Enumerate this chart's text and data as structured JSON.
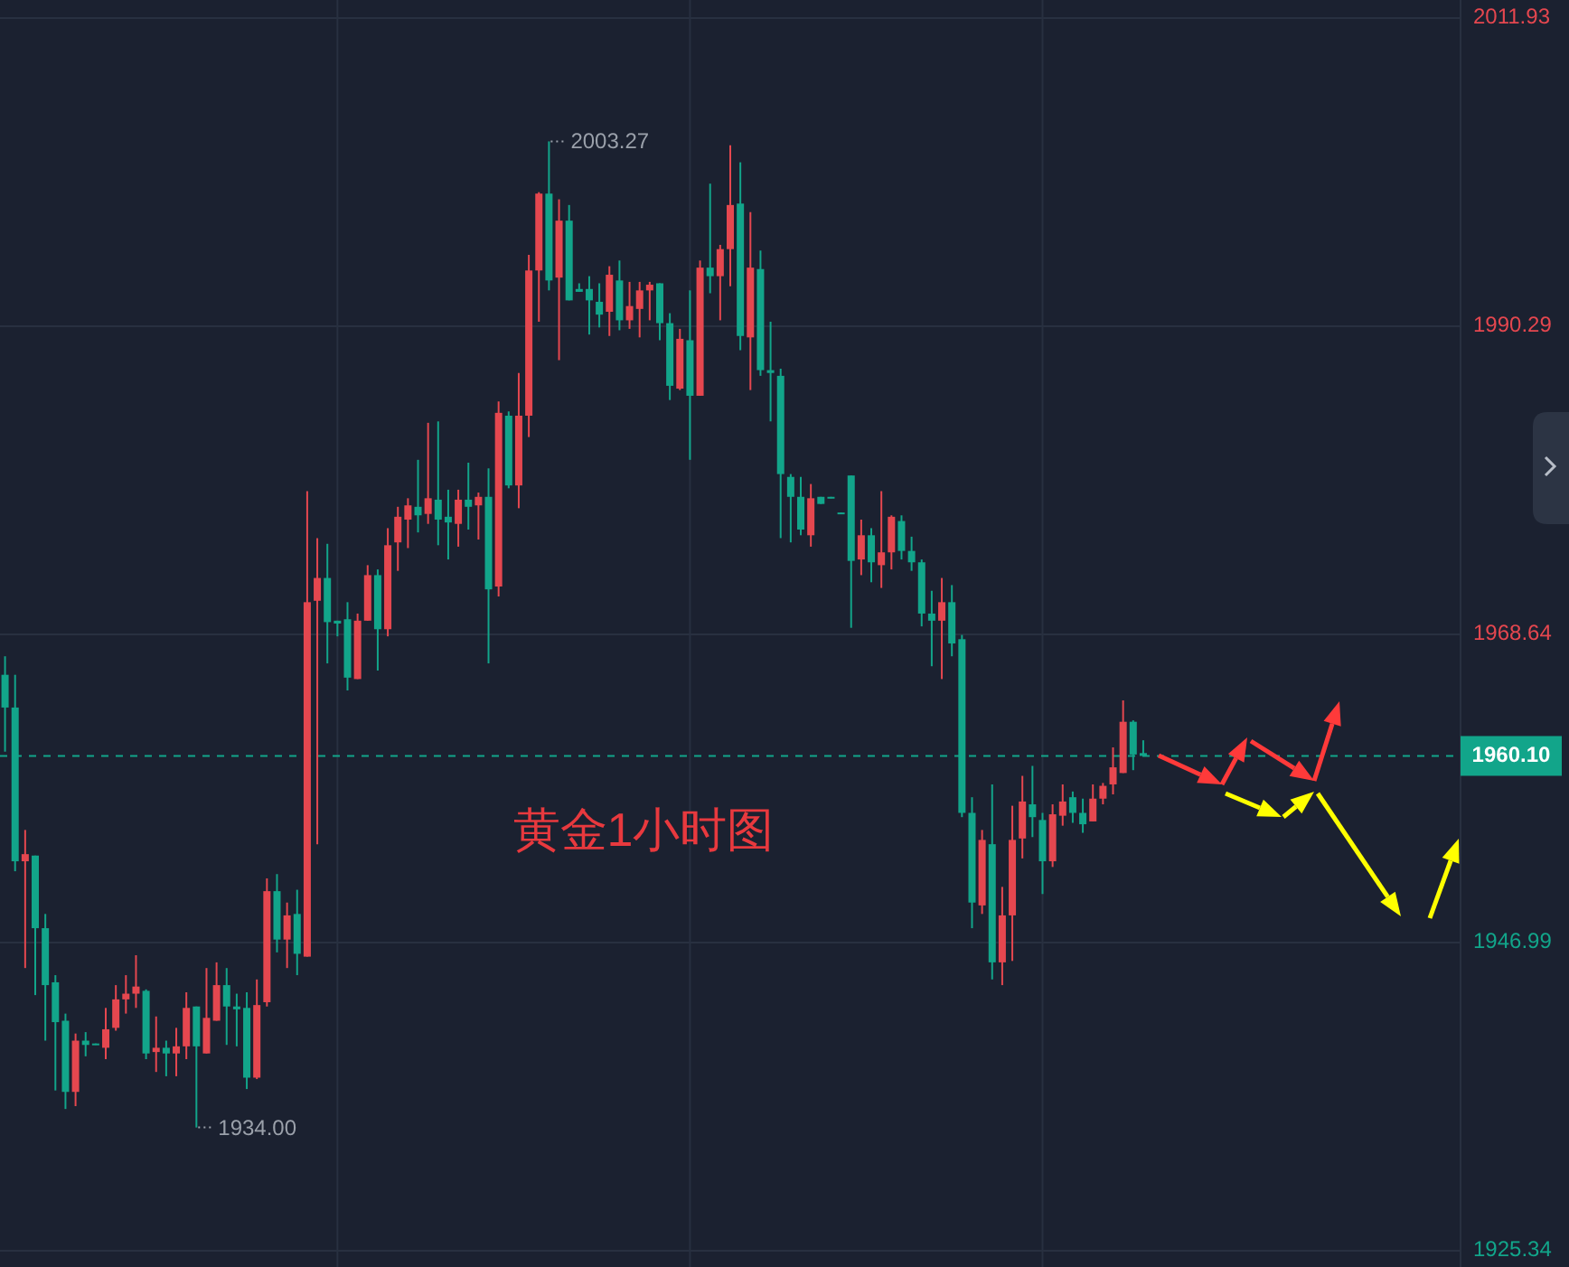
{
  "chart_data": {
    "type": "candlestick",
    "title": "黄金1小时图",
    "categories": [
      null,
      null,
      null,
      null,
      null,
      null,
      null,
      null,
      null,
      null,
      null,
      null,
      null,
      null,
      null,
      null,
      null,
      null,
      null,
      null,
      null,
      null,
      null,
      null,
      null,
      null,
      null,
      null,
      null,
      null,
      null,
      null,
      null,
      null,
      null,
      null,
      null,
      null,
      null,
      null,
      null,
      null,
      null,
      null,
      null,
      null,
      null,
      null,
      null,
      null,
      null,
      null,
      null,
      null,
      null,
      null,
      null,
      null,
      null,
      null,
      null,
      null,
      null,
      null,
      null,
      null,
      null,
      null,
      null,
      null,
      null,
      null,
      null,
      null,
      null,
      null,
      null,
      null,
      null,
      null,
      null,
      null,
      null,
      null,
      null,
      null,
      null,
      null,
      null,
      null,
      null,
      null,
      null,
      null,
      null,
      null,
      null,
      null,
      null,
      null,
      null,
      null,
      null,
      null,
      null,
      null,
      null,
      null,
      null,
      null,
      null,
      null,
      null,
      null,
      null,
      null,
      null,
      null,
      null,
      null,
      null,
      null,
      null,
      null,
      null,
      null,
      null,
      null,
      null,
      null,
      null,
      null,
      null,
      null,
      null,
      null,
      null,
      null,
      null,
      null,
      null,
      null,
      null,
      null,
      null
    ],
    "ohlc": [
      [
        1965.8,
        1967.1,
        1960.4,
        1963.5
      ],
      [
        1963.5,
        1965.8,
        1952.0,
        1952.7
      ],
      [
        1952.7,
        1954.9,
        1945.2,
        1953.2
      ],
      [
        1953.1,
        1953.1,
        1943.3,
        1948.0
      ],
      [
        1948.0,
        1949.0,
        1940.1,
        1944.0
      ],
      [
        1944.2,
        1944.7,
        1936.6,
        1941.4
      ],
      [
        1941.5,
        1942.0,
        1935.3,
        1936.5
      ],
      [
        1936.5,
        1940.6,
        1935.5,
        1940.1
      ],
      [
        1940.1,
        1940.7,
        1939.0,
        1939.8
      ],
      [
        1939.9,
        1939.9,
        1939.8,
        1939.8
      ],
      [
        1939.6,
        1942.4,
        1938.8,
        1940.9
      ],
      [
        1941.0,
        1944.0,
        1940.8,
        1943.0
      ],
      [
        1943.0,
        1944.7,
        1942.0,
        1943.4
      ],
      [
        1943.4,
        1946.1,
        1942.4,
        1943.9
      ],
      [
        1943.6,
        1943.7,
        1938.8,
        1939.2
      ],
      [
        1939.3,
        1941.8,
        1937.9,
        1939.6
      ],
      [
        1939.6,
        1940.1,
        1937.6,
        1939.2
      ],
      [
        1939.2,
        1941.0,
        1937.6,
        1939.7
      ],
      [
        1939.7,
        1943.5,
        1938.8,
        1942.4
      ],
      [
        1942.5,
        1942.5,
        1934.0,
        1939.7
      ],
      [
        1939.2,
        1945.2,
        1939.2,
        1941.7
      ],
      [
        1941.5,
        1945.6,
        1941.5,
        1944.0
      ],
      [
        1944.0,
        1945.2,
        1939.8,
        1942.5
      ],
      [
        1942.5,
        1943.4,
        1939.7,
        1942.3
      ],
      [
        1942.4,
        1943.5,
        1936.7,
        1937.5
      ],
      [
        1937.5,
        1944.4,
        1937.4,
        1942.6
      ],
      [
        1942.8,
        1951.5,
        1942.5,
        1950.6
      ],
      [
        1950.6,
        1951.8,
        1946.3,
        1947.2
      ],
      [
        1947.2,
        1949.8,
        1945.2,
        1948.9
      ],
      [
        1949.0,
        1950.7,
        1944.7,
        1946.2
      ],
      [
        1946.0,
        1978.7,
        1946.0,
        1970.9
      ],
      [
        1971.0,
        1975.4,
        1953.9,
        1972.6
      ],
      [
        1972.6,
        1975.0,
        1966.6,
        1969.5
      ],
      [
        1969.6,
        1969.6,
        1968.5,
        1969.4
      ],
      [
        1969.7,
        1970.9,
        1964.7,
        1965.6
      ],
      [
        1965.5,
        1970.1,
        1965.5,
        1969.6
      ],
      [
        1969.6,
        1973.5,
        1969.6,
        1972.8
      ],
      [
        1972.8,
        1973.2,
        1966.1,
        1969.0
      ],
      [
        1969.0,
        1976.1,
        1968.5,
        1974.9
      ],
      [
        1975.1,
        1977.6,
        1973.1,
        1976.9
      ],
      [
        1976.7,
        1978.2,
        1974.7,
        1977.7
      ],
      [
        1977.6,
        1980.9,
        1975.8,
        1977.0
      ],
      [
        1977.1,
        1983.5,
        1976.4,
        1978.2
      ],
      [
        1978.1,
        1983.6,
        1974.9,
        1976.7
      ],
      [
        1976.9,
        1978.8,
        1973.9,
        1976.5
      ],
      [
        1976.4,
        1978.8,
        1974.8,
        1978.1
      ],
      [
        1978.1,
        1980.7,
        1976.0,
        1977.6
      ],
      [
        1977.7,
        1978.6,
        1975.3,
        1978.3
      ],
      [
        1978.3,
        1980.3,
        1966.6,
        1971.8
      ],
      [
        1972.0,
        1985.0,
        1971.3,
        1984.2
      ],
      [
        1984.0,
        1984.3,
        1978.9,
        1979.1
      ],
      [
        1979.1,
        1987.0,
        1977.5,
        1984.0
      ],
      [
        1984.0,
        1995.3,
        1982.5,
        1994.2
      ],
      [
        1994.2,
        1999.7,
        1990.6,
        1999.6
      ],
      [
        1999.6,
        2003.27,
        1992.8,
        1993.5
      ],
      [
        1993.7,
        1999.2,
        1987.9,
        1997.7
      ],
      [
        1997.7,
        1998.8,
        1992.1,
        1992.1
      ],
      [
        1992.9,
        1993.3,
        1992.7,
        1992.7
      ],
      [
        1992.9,
        1993.8,
        1989.7,
        1992.1
      ],
      [
        1992.0,
        1993.3,
        1990.2,
        1991.1
      ],
      [
        1991.3,
        1994.5,
        1989.6,
        1993.9
      ],
      [
        1993.5,
        1994.9,
        1990.0,
        1990.7
      ],
      [
        1990.7,
        1993.4,
        1990.1,
        1991.7
      ],
      [
        1991.5,
        1993.4,
        1989.5,
        1992.8
      ],
      [
        1992.8,
        1993.4,
        1990.7,
        1993.2
      ],
      [
        1993.3,
        1993.3,
        1989.3,
        1990.5
      ],
      [
        1990.5,
        1991.2,
        1985.1,
        1986.1
      ],
      [
        1985.9,
        1990.1,
        1985.8,
        1989.4
      ],
      [
        1989.3,
        1992.8,
        1980.9,
        1985.4
      ],
      [
        1985.4,
        1994.9,
        1985.4,
        1994.4
      ],
      [
        1994.4,
        2000.3,
        1992.6,
        1993.8
      ],
      [
        1993.8,
        1996.0,
        1990.7,
        1995.7
      ],
      [
        1995.7,
        2003.0,
        1993.1,
        1998.8
      ],
      [
        1998.9,
        2001.8,
        1988.6,
        1989.6
      ],
      [
        1989.5,
        1998.3,
        1985.8,
        1994.4
      ],
      [
        1994.3,
        1995.6,
        1986.8,
        1987.2
      ],
      [
        1987.2,
        1990.6,
        1983.6,
        1987.0
      ],
      [
        1986.8,
        1987.3,
        1975.4,
        1979.9
      ],
      [
        1979.7,
        1979.9,
        1975.1,
        1978.3
      ],
      [
        1978.3,
        1979.7,
        1975.6,
        1976.0
      ],
      [
        1975.6,
        1979.2,
        1974.8,
        1978.2
      ],
      [
        1978.3,
        1978.3,
        1977.8,
        1977.8
      ],
      [
        1978.3,
        1978.3,
        1978.2,
        1978.2
      ],
      [
        1977.2,
        1977.2,
        1977.1,
        1977.1
      ],
      [
        1979.8,
        1979.8,
        1969.1,
        1973.8
      ],
      [
        1973.9,
        1976.7,
        1972.8,
        1975.6
      ],
      [
        1975.6,
        1976.1,
        1972.3,
        1973.7
      ],
      [
        1973.5,
        1978.7,
        1971.9,
        1974.4
      ],
      [
        1974.4,
        1977.0,
        1973.2,
        1976.9
      ],
      [
        1976.6,
        1977.0,
        1973.9,
        1974.5
      ],
      [
        1974.5,
        1975.5,
        1973.1,
        1973.7
      ],
      [
        1973.7,
        1973.9,
        1969.2,
        1970.1
      ],
      [
        1970.1,
        1971.7,
        1966.4,
        1969.6
      ],
      [
        1969.6,
        1972.6,
        1965.5,
        1970.9
      ],
      [
        1970.9,
        1972.1,
        1967.1,
        1968.0
      ],
      [
        1968.3,
        1968.6,
        1955.8,
        1956.1
      ],
      [
        1956.1,
        1957.2,
        1948.0,
        1949.8
      ],
      [
        1949.6,
        1954.9,
        1949.0,
        1954.2
      ],
      [
        1953.9,
        1958.1,
        1944.4,
        1945.6
      ],
      [
        1945.6,
        1950.9,
        1944.0,
        1948.9
      ],
      [
        1948.9,
        1956.6,
        1945.7,
        1954.2
      ],
      [
        1954.3,
        1958.7,
        1952.9,
        1956.9
      ],
      [
        1956.7,
        1959.4,
        1954.4,
        1955.8
      ],
      [
        1955.6,
        1956.1,
        1950.4,
        1952.7
      ],
      [
        1952.7,
        1956.7,
        1952.3,
        1956.0
      ],
      [
        1955.9,
        1958.1,
        1955.2,
        1956.9
      ],
      [
        1957.2,
        1957.6,
        1955.4,
        1956.1
      ],
      [
        1956.1,
        1957.1,
        1954.7,
        1955.3
      ],
      [
        1955.5,
        1958.1,
        1955.5,
        1957.1
      ],
      [
        1957.1,
        1958.2,
        1956.7,
        1958.0
      ],
      [
        1958.1,
        1960.7,
        1957.4,
        1959.3
      ],
      [
        1958.9,
        1964.0,
        1958.9,
        1962.5
      ],
      [
        1962.5,
        1962.6,
        1959.1,
        1960.2
      ],
      [
        1960.3,
        1961.2,
        1960.1,
        1960.1
      ],
      null,
      null,
      null,
      null,
      null,
      null,
      null,
      null,
      null,
      null,
      null,
      null,
      null,
      null,
      null,
      null,
      null,
      null,
      null,
      null,
      null,
      null,
      null,
      null,
      null,
      null,
      null,
      null,
      null,
      null,
      null
    ],
    "ylim": [
      1924.2,
      2013.2
    ],
    "yticks": [
      1925.34,
      1946.99,
      1968.64,
      1990.29,
      2011.93
    ],
    "grid": true,
    "ref_lines": [
      {
        "axis": "y",
        "value": 1960.1,
        "label": "1960.10",
        "color": "#12a58a",
        "line_style": "dashed"
      }
    ],
    "annotations": [
      "2003.27",
      "1934.00"
    ]
  }
}
